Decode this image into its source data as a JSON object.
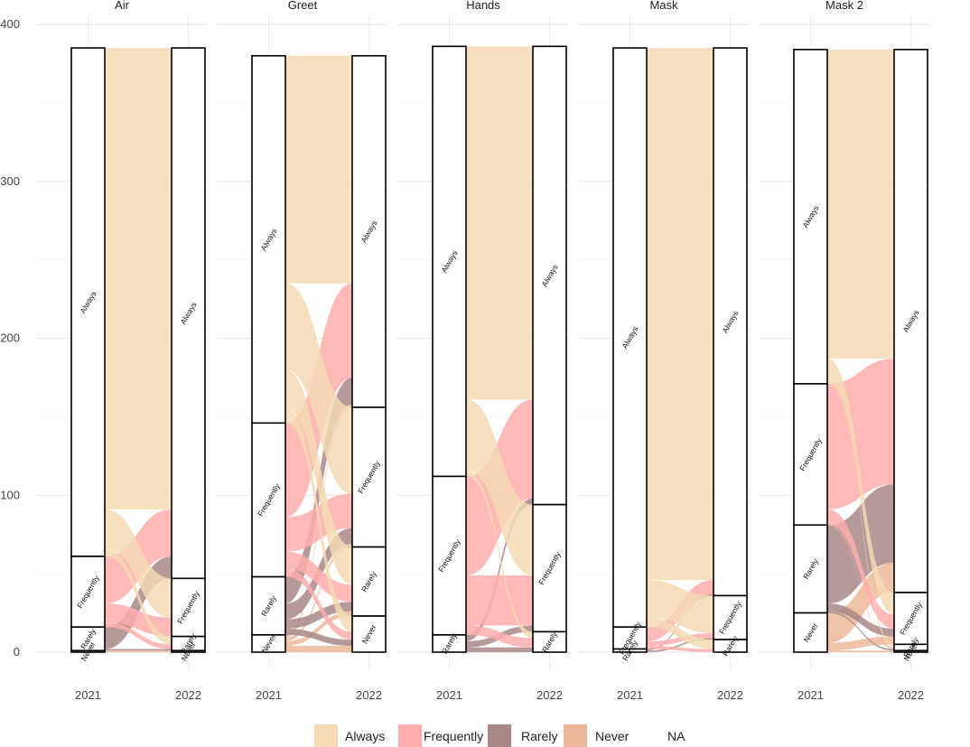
{
  "chart_data": {
    "type": "alluvial",
    "ylim": [
      0,
      400
    ],
    "y_ticks": [
      "0",
      "100",
      "200",
      "300",
      "400"
    ],
    "x_categories": [
      "2021",
      "2022"
    ],
    "stratum_order": [
      "Always",
      "Frequently",
      "Rarely",
      "Never"
    ],
    "legend": [
      {
        "label": "Always",
        "color": "#f5d9b3"
      },
      {
        "label": "Frequently",
        "color": "#ffadad"
      },
      {
        "label": "Rarely",
        "color": "#a98787"
      },
      {
        "label": "Never",
        "color": "#ebb899"
      },
      {
        "label": "NA",
        "color": ""
      }
    ],
    "colors": {
      "Always": "#f5d9b3",
      "Frequently": "#ffadad",
      "Rarely": "#a98787",
      "Never": "#ebb899"
    },
    "panels": [
      {
        "title": "Air",
        "strata_2021": {
          "Always": 324,
          "Frequently": 45,
          "Rarely": 15,
          "Never": 1
        },
        "strata_2022": {
          "Always": 338,
          "Frequently": 37,
          "Rarely": 9,
          "Never": 1
        },
        "flows": [
          {
            "from": "Always",
            "to": "Always",
            "value": 294
          },
          {
            "from": "Always",
            "to": "Frequently",
            "value": 25
          },
          {
            "from": "Always",
            "to": "Rarely",
            "value": 5
          },
          {
            "from": "Frequently",
            "to": "Always",
            "value": 30
          },
          {
            "from": "Frequently",
            "to": "Frequently",
            "value": 12
          },
          {
            "from": "Frequently",
            "to": "Rarely",
            "value": 3
          },
          {
            "from": "Rarely",
            "to": "Always",
            "value": 14
          },
          {
            "from": "Rarely",
            "to": "Rarely",
            "value": 1
          },
          {
            "from": "Never",
            "to": "Never",
            "value": 1
          }
        ]
      },
      {
        "title": "Greet",
        "strata_2021": {
          "Always": 234,
          "Frequently": 98,
          "Rarely": 37,
          "Never": 11
        },
        "strata_2022": {
          "Always": 224,
          "Frequently": 89,
          "Rarely": 44,
          "Never": 23
        },
        "flows": [
          {
            "from": "Always",
            "to": "Always",
            "value": 145
          },
          {
            "from": "Always",
            "to": "Frequently",
            "value": 55
          },
          {
            "from": "Always",
            "to": "Rarely",
            "value": 24
          },
          {
            "from": "Always",
            "to": "Never",
            "value": 10
          },
          {
            "from": "Frequently",
            "to": "Always",
            "value": 60
          },
          {
            "from": "Frequently",
            "to": "Frequently",
            "value": 22
          },
          {
            "from": "Frequently",
            "to": "Rarely",
            "value": 11
          },
          {
            "from": "Frequently",
            "to": "Never",
            "value": 5
          },
          {
            "from": "Rarely",
            "to": "Always",
            "value": 17
          },
          {
            "from": "Rarely",
            "to": "Frequently",
            "value": 10
          },
          {
            "from": "Rarely",
            "to": "Rarely",
            "value": 6
          },
          {
            "from": "Rarely",
            "to": "Never",
            "value": 4
          },
          {
            "from": "Never",
            "to": "Always",
            "value": 2
          },
          {
            "from": "Never",
            "to": "Frequently",
            "value": 2
          },
          {
            "from": "Never",
            "to": "Rarely",
            "value": 3
          },
          {
            "from": "Never",
            "to": "Never",
            "value": 4
          }
        ]
      },
      {
        "title": "Hands",
        "strata_2021": {
          "Always": 274,
          "Frequently": 101,
          "Rarely": 11,
          "Never": 0
        },
        "strata_2022": {
          "Always": 292,
          "Frequently": 81,
          "Rarely": 13,
          "Never": 0
        },
        "flows": [
          {
            "from": "Always",
            "to": "Always",
            "value": 225
          },
          {
            "from": "Always",
            "to": "Frequently",
            "value": 45
          },
          {
            "from": "Always",
            "to": "Rarely",
            "value": 4
          },
          {
            "from": "Frequently",
            "to": "Always",
            "value": 63
          },
          {
            "from": "Frequently",
            "to": "Frequently",
            "value": 32
          },
          {
            "from": "Frequently",
            "to": "Rarely",
            "value": 6
          },
          {
            "from": "Rarely",
            "to": "Always",
            "value": 4
          },
          {
            "from": "Rarely",
            "to": "Frequently",
            "value": 4
          },
          {
            "from": "Rarely",
            "to": "Rarely",
            "value": 3
          }
        ]
      },
      {
        "title": "Mask",
        "strata_2021": {
          "Always": 369,
          "Frequently": 14,
          "Rarely": 2,
          "Never": 0
        },
        "strata_2022": {
          "Always": 349,
          "Frequently": 28,
          "Rarely": 8,
          "Never": 0
        },
        "flows": [
          {
            "from": "Always",
            "to": "Always",
            "value": 339
          },
          {
            "from": "Always",
            "to": "Frequently",
            "value": 24
          },
          {
            "from": "Always",
            "to": "Rarely",
            "value": 6
          },
          {
            "from": "Frequently",
            "to": "Always",
            "value": 9
          },
          {
            "from": "Frequently",
            "to": "Frequently",
            "value": 3
          },
          {
            "from": "Frequently",
            "to": "Rarely",
            "value": 2
          },
          {
            "from": "Rarely",
            "to": "Always",
            "value": 1
          },
          {
            "from": "Rarely",
            "to": "Frequently",
            "value": 1
          }
        ]
      },
      {
        "title": "Mask 2",
        "strata_2021": {
          "Always": 213,
          "Frequently": 90,
          "Rarely": 56,
          "Never": 25
        },
        "strata_2022": {
          "Always": 346,
          "Frequently": 33,
          "Rarely": 4,
          "Never": 1
        },
        "flows": [
          {
            "from": "Always",
            "to": "Always",
            "value": 197
          },
          {
            "from": "Always",
            "to": "Frequently",
            "value": 14
          },
          {
            "from": "Always",
            "to": "Rarely",
            "value": 2
          },
          {
            "from": "Frequently",
            "to": "Always",
            "value": 80
          },
          {
            "from": "Frequently",
            "to": "Frequently",
            "value": 9
          },
          {
            "from": "Frequently",
            "to": "Rarely",
            "value": 1
          },
          {
            "from": "Rarely",
            "to": "Always",
            "value": 50
          },
          {
            "from": "Rarely",
            "to": "Frequently",
            "value": 5
          },
          {
            "from": "Rarely",
            "to": "Rarely",
            "value": 1
          },
          {
            "from": "Never",
            "to": "Always",
            "value": 19
          },
          {
            "from": "Never",
            "to": "Frequently",
            "value": 5
          },
          {
            "from": "Never",
            "to": "Never",
            "value": 1
          }
        ]
      }
    ]
  }
}
